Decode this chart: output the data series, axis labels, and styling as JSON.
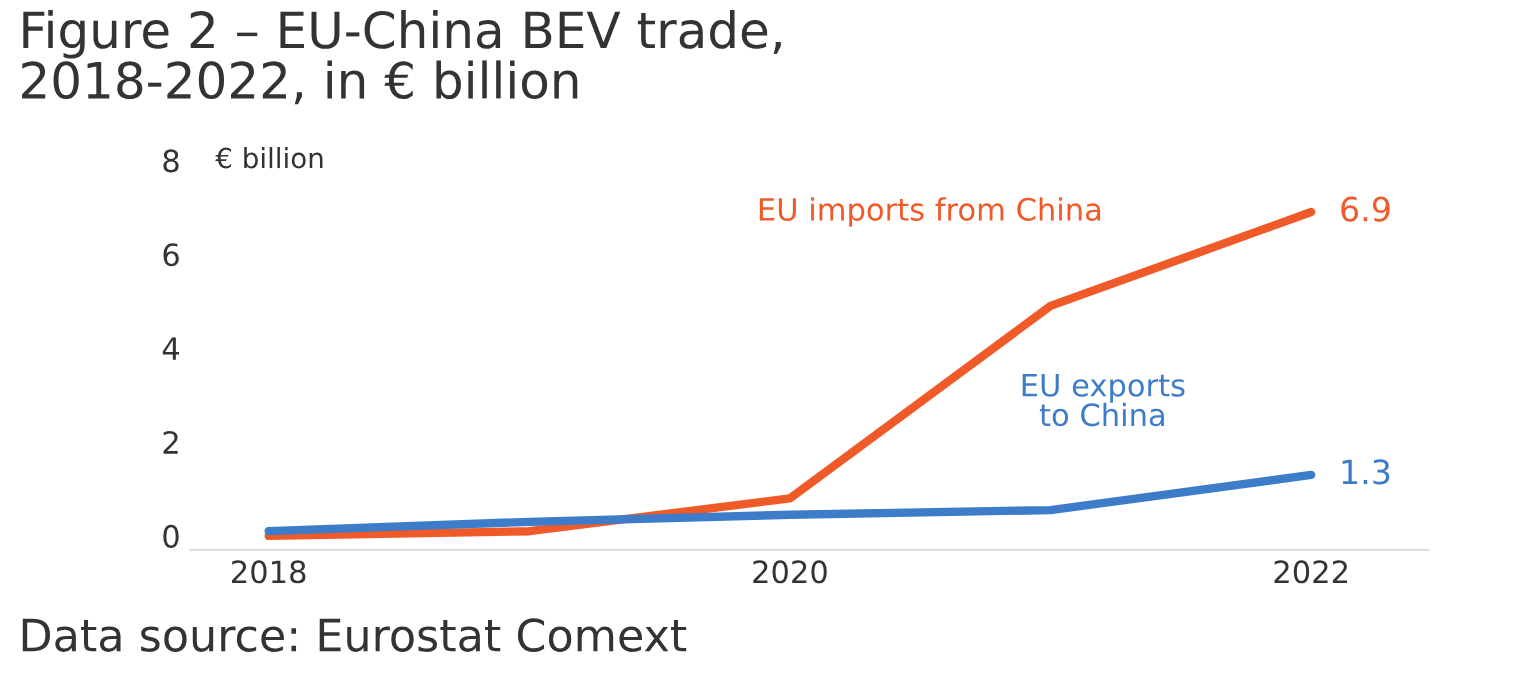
{
  "chart_data": {
    "type": "line",
    "title": "Figure 2 – EU-China BEV trade,\n2018-2022, in € billion",
    "ylabel": "€ billion",
    "x": [
      2018,
      2019,
      2020,
      2021,
      2022
    ],
    "series": [
      {
        "name": "EU imports from China",
        "color": "#f05a28",
        "values": [
          0.0,
          0.1,
          0.8,
          4.9,
          6.9
        ],
        "value_labels": [
          null,
          null,
          null,
          null,
          "6.9"
        ]
      },
      {
        "name": "EU exports\nto China",
        "color": "#3d7cc9",
        "values": [
          0.1,
          0.3,
          0.45,
          0.55,
          1.3
        ],
        "value_labels": [
          null,
          null,
          null,
          null,
          "1.3"
        ]
      }
    ],
    "xlim": [
      2017.7,
      2022.45
    ],
    "xticks": [
      2018,
      2020,
      2022
    ],
    "ylim": [
      -0.3,
      8
    ],
    "yticks": [
      0,
      2,
      4,
      6,
      8
    ],
    "grid": false,
    "legend": false,
    "annotations": [
      "Data source: Eurostat Comext"
    ]
  }
}
